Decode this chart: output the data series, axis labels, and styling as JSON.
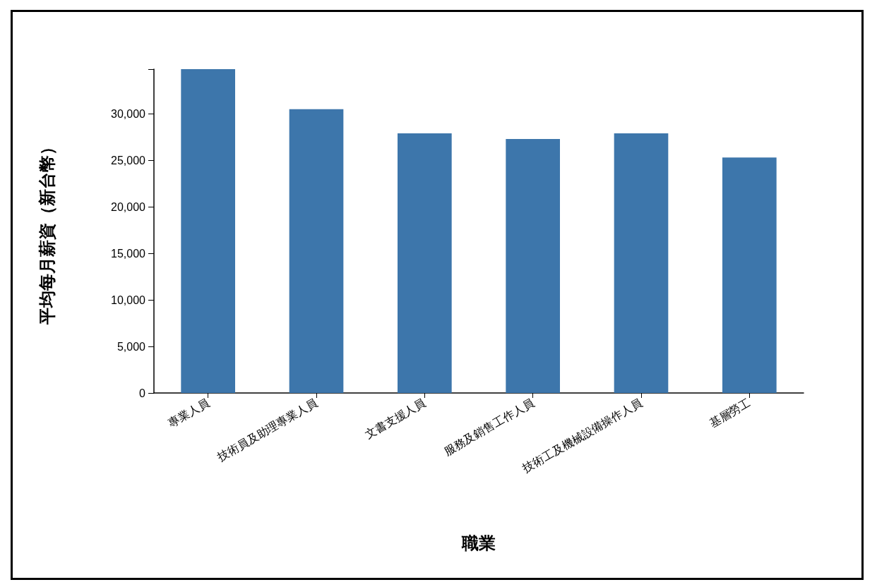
{
  "chart_data": {
    "type": "bar",
    "xlabel": "職業",
    "ylabel": "平均每月薪資（新台幣）",
    "categories": [
      "專業人員",
      "技術員及助理專業人員",
      "文書支援人員",
      "服務及銷售工作人員",
      "技術工及機械設備操作人員",
      "基層勞工"
    ],
    "values": [
      34800,
      30500,
      27900,
      27300,
      27900,
      25300
    ],
    "color": "#3d76ab",
    "ylim": [
      0,
      34800
    ],
    "yticks": [
      0,
      {
        "value": 5000,
        "label": "5,000"
      },
      {
        "value": 10000,
        "label": "10,000"
      },
      {
        "value": 15000,
        "label": "15,000"
      },
      {
        "value": 20000,
        "label": "20,000"
      },
      {
        "value": 25000,
        "label": "25,000"
      },
      {
        "value": 30000,
        "label": "30,000"
      },
      {
        "value": 34800,
        "label": null
      }
    ],
    "grid": false
  }
}
